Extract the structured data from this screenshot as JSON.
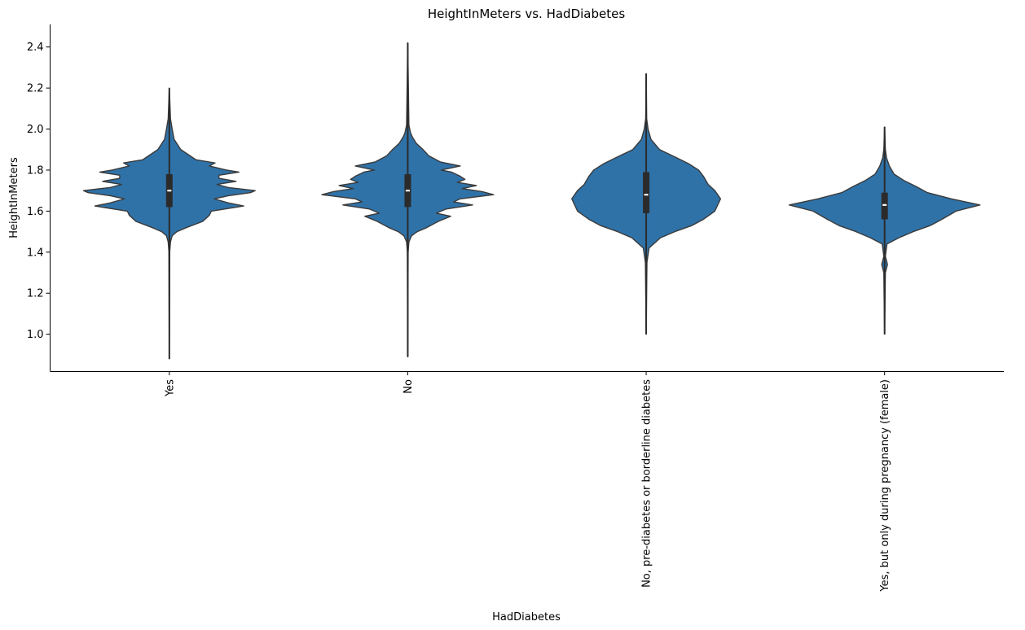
{
  "chart_data": {
    "type": "violin",
    "title": "HeightInMeters vs. HadDiabetes",
    "xlabel": "HadDiabetes",
    "ylabel": "HeightInMeters",
    "ylim": [
      0.82,
      2.51
    ],
    "yticks": [
      1.0,
      1.2,
      1.4,
      1.6,
      1.8,
      2.0,
      2.2,
      2.4
    ],
    "ytick_labels": [
      "1.0",
      "1.2",
      "1.4",
      "1.6",
      "1.8",
      "2.0",
      "2.2",
      "2.4"
    ],
    "categories": [
      "Yes",
      "No",
      "No, pre-diabetes or borderline diabetes",
      "Yes, but only during pregnancy (female)"
    ],
    "fill_color": "#2f72a8",
    "stroke_color": "#3a3a3a",
    "box_color": "#2b2b2b",
    "grid": false,
    "violins": [
      {
        "category": "Yes",
        "min": 0.88,
        "max": 2.2,
        "q1": 1.62,
        "median": 1.7,
        "q3": 1.78,
        "profile": [
          [
            0.88,
            0.0
          ],
          [
            1.4,
            0.004
          ],
          [
            1.45,
            0.012
          ],
          [
            1.48,
            0.03
          ],
          [
            1.5,
            0.08
          ],
          [
            1.52,
            0.18
          ],
          [
            1.55,
            0.35
          ],
          [
            1.58,
            0.42
          ],
          [
            1.6,
            0.44
          ],
          [
            1.625,
            0.78
          ],
          [
            1.64,
            0.62
          ],
          [
            1.66,
            0.47
          ],
          [
            1.675,
            0.62
          ],
          [
            1.69,
            0.85
          ],
          [
            1.7,
            0.9
          ],
          [
            1.715,
            0.62
          ],
          [
            1.73,
            0.5
          ],
          [
            1.745,
            0.7
          ],
          [
            1.76,
            0.52
          ],
          [
            1.775,
            0.52
          ],
          [
            1.79,
            0.73
          ],
          [
            1.8,
            0.6
          ],
          [
            1.82,
            0.42
          ],
          [
            1.835,
            0.48
          ],
          [
            1.85,
            0.28
          ],
          [
            1.9,
            0.12
          ],
          [
            1.95,
            0.05
          ],
          [
            2.0,
            0.03
          ],
          [
            2.05,
            0.012
          ],
          [
            2.2,
            0.0
          ]
        ]
      },
      {
        "category": "No",
        "min": 0.89,
        "max": 2.42,
        "q1": 1.62,
        "median": 1.7,
        "q3": 1.78,
        "profile": [
          [
            0.89,
            0.0
          ],
          [
            1.4,
            0.004
          ],
          [
            1.45,
            0.012
          ],
          [
            1.48,
            0.04
          ],
          [
            1.5,
            0.1
          ],
          [
            1.52,
            0.2
          ],
          [
            1.55,
            0.32
          ],
          [
            1.575,
            0.45
          ],
          [
            1.59,
            0.3
          ],
          [
            1.61,
            0.4
          ],
          [
            1.63,
            0.68
          ],
          [
            1.645,
            0.48
          ],
          [
            1.66,
            0.55
          ],
          [
            1.68,
            0.9
          ],
          [
            1.695,
            0.78
          ],
          [
            1.71,
            0.57
          ],
          [
            1.725,
            0.72
          ],
          [
            1.74,
            0.52
          ],
          [
            1.755,
            0.6
          ],
          [
            1.77,
            0.55
          ],
          [
            1.79,
            0.46
          ],
          [
            1.8,
            0.35
          ],
          [
            1.82,
            0.55
          ],
          [
            1.84,
            0.34
          ],
          [
            1.87,
            0.22
          ],
          [
            1.9,
            0.16
          ],
          [
            1.93,
            0.09
          ],
          [
            1.96,
            0.05
          ],
          [
            1.98,
            0.03
          ],
          [
            2.02,
            0.012
          ],
          [
            2.42,
            0.0
          ]
        ]
      },
      {
        "category": "No, pre-diabetes or borderline diabetes",
        "min": 1.0,
        "max": 2.27,
        "q1": 1.59,
        "median": 1.68,
        "q3": 1.79,
        "profile": [
          [
            1.0,
            0.0
          ],
          [
            1.35,
            0.008
          ],
          [
            1.42,
            0.03
          ],
          [
            1.47,
            0.15
          ],
          [
            1.5,
            0.3
          ],
          [
            1.53,
            0.48
          ],
          [
            1.56,
            0.6
          ],
          [
            1.6,
            0.72
          ],
          [
            1.63,
            0.75
          ],
          [
            1.66,
            0.78
          ],
          [
            1.7,
            0.72
          ],
          [
            1.73,
            0.65
          ],
          [
            1.77,
            0.6
          ],
          [
            1.8,
            0.55
          ],
          [
            1.83,
            0.45
          ],
          [
            1.86,
            0.32
          ],
          [
            1.9,
            0.14
          ],
          [
            1.95,
            0.05
          ],
          [
            2.0,
            0.02
          ],
          [
            2.05,
            0.005
          ],
          [
            2.27,
            0.0
          ]
        ]
      },
      {
        "category": "Yes, but only during pregnancy (female)",
        "min": 1.0,
        "max": 2.01,
        "q1": 1.56,
        "median": 1.63,
        "q3": 1.69,
        "profile": [
          [
            1.0,
            0.0
          ],
          [
            1.3,
            0.008
          ],
          [
            1.34,
            0.03
          ],
          [
            1.38,
            0.008
          ],
          [
            1.44,
            0.025
          ],
          [
            1.47,
            0.15
          ],
          [
            1.5,
            0.3
          ],
          [
            1.53,
            0.48
          ],
          [
            1.56,
            0.6
          ],
          [
            1.6,
            0.75
          ],
          [
            1.63,
            1.0
          ],
          [
            1.66,
            0.7
          ],
          [
            1.69,
            0.45
          ],
          [
            1.72,
            0.33
          ],
          [
            1.75,
            0.2
          ],
          [
            1.78,
            0.1
          ],
          [
            1.82,
            0.05
          ],
          [
            1.86,
            0.02
          ],
          [
            1.9,
            0.008
          ],
          [
            2.01,
            0.0
          ]
        ]
      }
    ]
  }
}
